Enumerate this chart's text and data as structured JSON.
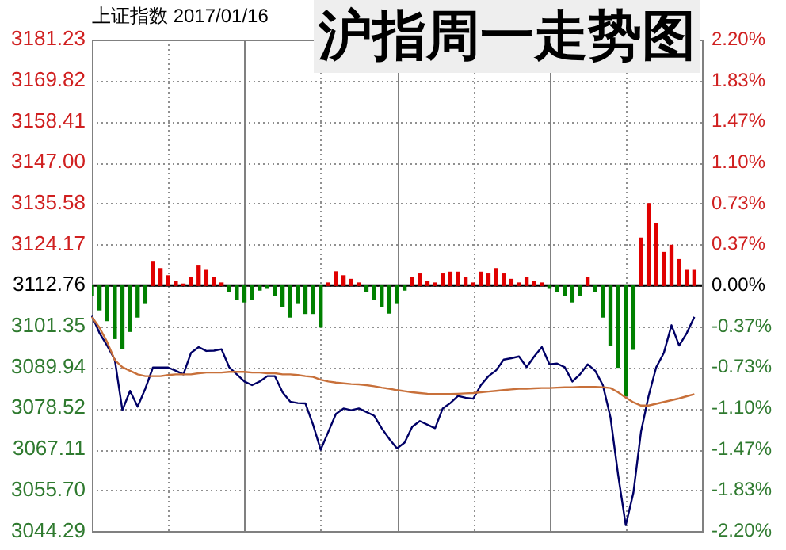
{
  "chart_data": {
    "type": "line",
    "title": "沪指周一走势图",
    "subtitle": "上证指数 2017/01/16",
    "categories": [
      null,
      null,
      null,
      null,
      null,
      null,
      null,
      null,
      null,
      null,
      null,
      null,
      null,
      null,
      null,
      null,
      null,
      null,
      null,
      null,
      null,
      null,
      null,
      null,
      null,
      null,
      null,
      null,
      null,
      null,
      null,
      null,
      null,
      null,
      null,
      null,
      null,
      null,
      null,
      null,
      null,
      null,
      null,
      null,
      null,
      null,
      null,
      null,
      null,
      null,
      null,
      null,
      null,
      null,
      null,
      null,
      null,
      null,
      null,
      null,
      null,
      null,
      null,
      null,
      null,
      null,
      null,
      null,
      null,
      null,
      null,
      null,
      null,
      null,
      null,
      null,
      null,
      null,
      null,
      null,
      null
    ],
    "series": [
      {
        "type": "bar",
        "values": [
          -2.8,
          -6.8,
          -9.8,
          -14.8,
          -17.6,
          -12.8,
          -8.8,
          -4.8,
          6.7,
          4.7,
          2.7,
          1.2,
          0.4,
          2.2,
          5.4,
          4.2,
          2.2,
          0.7,
          -1.8,
          -3.8,
          -4.6,
          -3.8,
          -1.3,
          -0.8,
          -2.8,
          -5.8,
          -8.8,
          -4.8,
          -7.8,
          -7.8,
          -11.6,
          0.7,
          3.8,
          2.7,
          1.7,
          0.7,
          -1.8,
          -3.8,
          -5.8,
          -7.7,
          -4.8,
          -1.3,
          2.2,
          3.2,
          1.2,
          0.7,
          3.2,
          3.7,
          3.7,
          2.2,
          0.7,
          3.7,
          3.2,
          4.7,
          3.2,
          1.7,
          0.7,
          2.2,
          1.0,
          0.7,
          -0.8,
          -1.8,
          -2.8,
          -4.6,
          -2.8,
          2.2,
          -1.8,
          -8.8,
          -16.8,
          -22.8,
          -30.7,
          -17.8,
          13.2,
          22.8,
          17.2,
          9.2,
          11.2,
          7.2,
          4.2,
          4.2,
          null
        ],
        "base": [
          3112.76,
          3112.76,
          3112.76,
          3112.76,
          3112.76,
          3112.76,
          3112.76,
          3112.76,
          3112.76,
          3112.76,
          3112.76,
          3112.76,
          3112.76,
          3112.76,
          3112.76,
          3112.76,
          3112.76,
          3112.76,
          3112.76,
          3112.76,
          3112.76,
          3112.76,
          3112.76,
          3112.76,
          3112.76,
          3112.76,
          3112.76,
          3112.76,
          3112.76,
          3112.76,
          3112.76,
          3112.76,
          3112.76,
          3112.76,
          3112.76,
          3112.76,
          3112.76,
          3112.76,
          3112.76,
          3112.76,
          3112.76,
          3112.76,
          3112.76,
          3112.76,
          3112.76,
          3112.76,
          3112.76,
          3112.76,
          3112.76,
          3112.76,
          3112.76,
          3112.76,
          3112.76,
          3112.76,
          3112.76,
          3112.76,
          3112.76,
          3112.76,
          3112.76,
          3112.76,
          3112.76,
          3112.76,
          3112.76,
          3112.76,
          3112.76,
          3112.76,
          3112.76,
          3112.76,
          3112.76,
          3112.76,
          3112.76,
          3112.76,
          3112.76,
          3112.76,
          3112.76,
          3112.76,
          3112.76,
          3112.76,
          3112.76,
          3112.76,
          null
        ],
        "colors": [
          "#008000",
          "#008000",
          "#008000",
          "#008000",
          "#008000",
          "#008000",
          "#008000",
          "#008000",
          "#e00000",
          "#e00000",
          "#e00000",
          "#e00000",
          "#e00000",
          "#e00000",
          "#e00000",
          "#e00000",
          "#e00000",
          "#e00000",
          "#008000",
          "#008000",
          "#008000",
          "#008000",
          "#008000",
          "#008000",
          "#008000",
          "#008000",
          "#008000",
          "#008000",
          "#008000",
          "#008000",
          "#008000",
          "#e00000",
          "#e00000",
          "#e00000",
          "#e00000",
          "#e00000",
          "#008000",
          "#008000",
          "#008000",
          "#008000",
          "#008000",
          "#008000",
          "#e00000",
          "#e00000",
          "#e00000",
          "#e00000",
          "#e00000",
          "#e00000",
          "#e00000",
          "#e00000",
          "#e00000",
          "#e00000",
          "#e00000",
          "#e00000",
          "#e00000",
          "#e00000",
          "#e00000",
          "#e00000",
          "#e00000",
          "#e00000",
          "#008000",
          "#008000",
          "#008000",
          "#008000",
          "#008000",
          "#e00000",
          "#008000",
          "#008000",
          "#008000",
          "#008000",
          "#008000",
          "#008000",
          "#e00000",
          "#e00000",
          "#e00000",
          "#e00000",
          "#e00000",
          "#e00000",
          "#e00000",
          "#e00000",
          "#e00000"
        ]
      },
      {
        "color": "#000066",
        "values": [
          3104.3,
          3099.5,
          3096,
          3092.1,
          3078,
          3083.4,
          3079,
          3084,
          3089.9,
          3089.9,
          3089.9,
          3089,
          3088,
          3094,
          3095.6,
          3094.5,
          3094.6,
          3095,
          3090,
          3088,
          3086,
          3085,
          3086,
          3087.5,
          3087.5,
          3083,
          3080.4,
          3080,
          3079.9,
          3074,
          3067,
          3072,
          3077,
          3078.5,
          3078,
          3078.5,
          3077.5,
          3076.5,
          3073,
          3070,
          3067.4,
          3069,
          3073.4,
          3075,
          3074,
          3073,
          3078.5,
          3080,
          3082,
          3081.5,
          3081.2,
          3085,
          3087.5,
          3089.1,
          3092.1,
          3092.5,
          3093,
          3090,
          3093,
          3095.6,
          3090.8,
          3091,
          3090,
          3086,
          3088,
          3090.8,
          3089,
          3085,
          3076,
          3060,
          3046,
          3055,
          3072,
          3082,
          3090,
          3094,
          3101.7,
          3096,
          3099.5,
          3104,
          null
        ]
      },
      {
        "color": "#c8703a",
        "values": [
          3104,
          3101,
          3097,
          3092,
          3090,
          3089,
          3088,
          3087.5,
          3087.5,
          3087.5,
          3087.8,
          3088,
          3088,
          3088,
          3088.3,
          3088.5,
          3088.5,
          3088.5,
          3088.7,
          3088.7,
          3088.7,
          3088.5,
          3088.5,
          3088.3,
          3088.3,
          3088,
          3088,
          3087.8,
          3087.5,
          3087.3,
          3086.5,
          3086,
          3085.7,
          3085.5,
          3085.3,
          3085.2,
          3085,
          3084.7,
          3084.3,
          3084,
          3083.6,
          3083.3,
          3083,
          3082.8,
          3082.6,
          3082.5,
          3082.5,
          3082.5,
          3082.6,
          3082.7,
          3082.8,
          3083,
          3083.2,
          3083.4,
          3083.6,
          3083.8,
          3084,
          3084,
          3084.1,
          3084.2,
          3084.2,
          3084.3,
          3084.4,
          3084.4,
          3084.5,
          3084.5,
          3084.5,
          3084.4,
          3084.2,
          3083,
          3081.5,
          3080.2,
          3079.3,
          3079.3,
          3079.8,
          3080.3,
          3080.8,
          3081.3,
          3081.9,
          3082.5,
          null
        ]
      }
    ],
    "ylim": [
      3044.29,
      3181.23
    ],
    "yticks": [
      3044.29,
      {
        "value": 3055.7,
        "label": "3055.70"
      },
      3067.11,
      3078.52,
      3089.94,
      3101.35,
      3112.76,
      3124.17,
      3135.58,
      {
        "value": 3147,
        "label": "3147.00"
      },
      3158.41,
      3169.82,
      3181.23
    ],
    "y2lim": [
      -2.2,
      2.2
    ],
    "y2ticks": [
      {
        "value": -2.2,
        "label": "-2.20%"
      },
      {
        "value": -1.83,
        "label": "-1.83%"
      },
      {
        "value": -1.47,
        "label": "-1.47%"
      },
      {
        "value": -1.1,
        "label": "-1.10%"
      },
      {
        "value": -0.73,
        "label": "-0.73%"
      },
      {
        "value": -0.37,
        "label": "-0.37%"
      },
      {
        "value": 0,
        "label": "0.00%"
      },
      {
        "value": 0.37,
        "label": "0.37%"
      },
      {
        "value": 0.73,
        "label": "0.73%"
      },
      {
        "value": 1.1,
        "label": "1.10%"
      },
      {
        "value": 1.47,
        "label": "1.47%"
      },
      {
        "value": 1.83,
        "label": "1.83%"
      },
      {
        "value": 2.2,
        "label": "2.20%"
      }
    ],
    "ref_lines": [
      {
        "axis": "y",
        "value": 3112.76,
        "color": "#000000"
      }
    ],
    "grid": true,
    "legend": false,
    "marker": "none",
    "line_style": "solid"
  }
}
